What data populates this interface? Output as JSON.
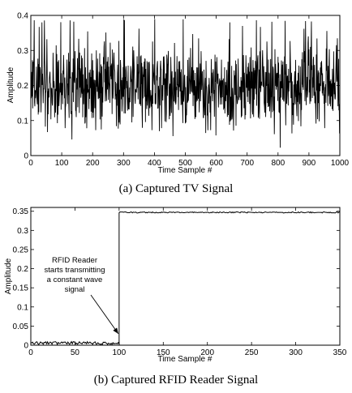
{
  "chart_data": [
    {
      "type": "line",
      "caption": "(a) Captured TV Signal",
      "xlabel": "Time Sample #",
      "ylabel": "Amplitude",
      "xlim": [
        0,
        1000
      ],
      "ylim": [
        0,
        0.4
      ],
      "x_ticks": [
        0,
        100,
        200,
        300,
        400,
        500,
        600,
        700,
        800,
        900,
        1000
      ],
      "y_ticks": [
        0,
        0.1,
        0.2,
        0.3,
        0.4
      ],
      "x_tick_labels": [
        "0",
        "100",
        "200",
        "300",
        "400",
        "500",
        "600",
        "700",
        "800",
        "900",
        "1000"
      ],
      "y_tick_labels": [
        "0",
        "0.1",
        "0.2",
        "0.3",
        "0.4"
      ],
      "grid": false,
      "series": [
        {
          "description": "noisy signal, 1000 samples, fluctuating around 0.2 with range about 0.02 to 0.39",
          "x_start": 0,
          "x_step": 1,
          "count": 1000,
          "mean": 0.2,
          "min": 0.02,
          "max": 0.39
        }
      ]
    },
    {
      "type": "line",
      "caption": "(b) Captured RFID Reader Signal",
      "xlabel": "Time Sample #",
      "ylabel": "Amplitude",
      "xlim": [
        0,
        350
      ],
      "ylim": [
        0,
        0.36
      ],
      "x_ticks": [
        0,
        50,
        100,
        150,
        200,
        250,
        300,
        350
      ],
      "y_ticks": [
        0,
        0.05,
        0.1,
        0.15,
        0.2,
        0.25,
        0.3,
        0.35
      ],
      "x_tick_labels": [
        "0",
        "50",
        "100",
        "150",
        "200",
        "250",
        "300",
        "350"
      ],
      "y_tick_labels": [
        "0",
        "0.05",
        "0.1",
        "0.15",
        "0.2",
        "0.25",
        "0.3",
        "0.35"
      ],
      "grid": false,
      "series": [
        {
          "description": "step signal: about 0.004 for samples 0-100, then about 0.347 for samples 100-350",
          "segments": [
            {
              "x_from": 0,
              "x_to": 100,
              "level": 0.004
            },
            {
              "x_from": 100,
              "x_to": 350,
              "level": 0.347
            }
          ]
        }
      ],
      "annotation": {
        "lines": [
          "RFID Reader",
          "starts transmitting",
          "a constant wave",
          "signal"
        ],
        "arrow_to": {
          "x": 100,
          "y": 0.03
        }
      }
    }
  ]
}
